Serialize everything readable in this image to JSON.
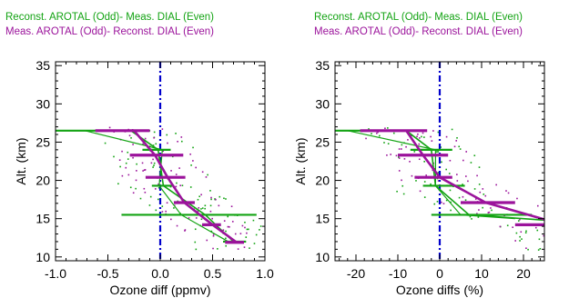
{
  "chart_data": [
    {
      "type": "line",
      "legend": [
        {
          "label": "Reconst. AROTAL (Odd)- Meas. DIAL (Even)",
          "color": "#13a313"
        },
        {
          "label": "Meas. AROTAL (Odd)- Reconst. DIAL (Even)",
          "color": "#9b139b"
        }
      ],
      "xlabel": "Ozone diff (ppmv)",
      "ylabel": "Alt. (km)",
      "xlim": [
        -1.0,
        1.0
      ],
      "ylim": [
        9.5,
        35.5
      ],
      "xticks": [
        -1.0,
        -0.5,
        0.0,
        0.5,
        1.0
      ],
      "xtick_labels": [
        "-1.0",
        "-0.5",
        "0.0",
        "0.5",
        "1.0"
      ],
      "yticks": [
        10,
        15,
        20,
        25,
        30,
        35
      ],
      "zero_line": {
        "x": 0,
        "color": "#0000cc",
        "style": "dash-dot"
      },
      "series": [
        {
          "color": "#13a313",
          "mean_profile": [
            {
              "x": -0.28,
              "y": 26.5
            },
            {
              "x": -0.02,
              "y": 24.0
            },
            {
              "x": 0.03,
              "y": 19.3
            },
            {
              "x": 0.43,
              "y": 15.5
            },
            {
              "x": 0.7,
              "y": 12.0
            }
          ],
          "median_profile": [
            {
              "x": -0.72,
              "y": 26.5
            },
            {
              "x": 0.02,
              "y": 24.0
            },
            {
              "x": -0.01,
              "y": 19.3
            },
            {
              "x": 0.2,
              "y": 15.5
            },
            {
              "x": 0.65,
              "y": 12.0
            }
          ],
          "error_bars": [
            {
              "y": 26.5,
              "x_low": -1.0,
              "x_high": -0.48
            },
            {
              "y": 24.0,
              "x_low": -0.17,
              "x_high": 0.1
            },
            {
              "y": 19.3,
              "x_low": -0.08,
              "x_high": 0.12
            },
            {
              "y": 15.5,
              "x_low": -0.37,
              "x_high": 0.92
            },
            {
              "y": 12.0,
              "x_low": 0.6,
              "x_high": 0.82
            }
          ]
        },
        {
          "color": "#9b139b",
          "mean_profile": [
            {
              "x": -0.25,
              "y": 26.5
            },
            {
              "x": -0.05,
              "y": 23.3
            },
            {
              "x": 0.07,
              "y": 20.4
            },
            {
              "x": 0.23,
              "y": 17.1
            },
            {
              "x": 0.5,
              "y": 14.2
            },
            {
              "x": 0.73,
              "y": 11.9
            }
          ],
          "median_profile": [],
          "error_bars": [
            {
              "y": 26.5,
              "x_low": -0.62,
              "x_high": -0.1
            },
            {
              "y": 23.3,
              "x_low": -0.29,
              "x_high": 0.22
            },
            {
              "y": 20.4,
              "x_low": -0.14,
              "x_high": 0.24
            },
            {
              "y": 17.1,
              "x_low": 0.13,
              "x_high": 0.33
            },
            {
              "y": 14.2,
              "x_low": 0.4,
              "x_high": 0.58
            },
            {
              "y": 11.9,
              "x_low": 0.62,
              "x_high": 0.8
            }
          ]
        }
      ]
    },
    {
      "type": "line",
      "legend": [
        {
          "label": "Reconst. AROTAL (Odd)- Meas. DIAL (Even)",
          "color": "#13a313"
        },
        {
          "label": "Meas. AROTAL (Odd)- Reconst. DIAL (Even)",
          "color": "#9b139b"
        }
      ],
      "xlabel": "Ozone diffs (%)",
      "ylabel": "Alt. (km)",
      "xlim": [
        -25,
        25
      ],
      "ylim": [
        9.5,
        35.5
      ],
      "xticks": [
        -20,
        -10,
        0,
        10,
        20
      ],
      "xtick_labels": [
        "-20",
        "-10",
        "0",
        "10",
        "20"
      ],
      "yticks": [
        10,
        15,
        20,
        25,
        30,
        35
      ],
      "zero_line": {
        "x": 0,
        "color": "#0000cc",
        "style": "dash-dot"
      },
      "series": [
        {
          "color": "#13a313",
          "mean_profile": [
            {
              "x": -8,
              "y": 26.5
            },
            {
              "x": -2,
              "y": 24.0
            },
            {
              "x": -1,
              "y": 19.3
            },
            {
              "x": 7,
              "y": 15.5
            },
            {
              "x": 25,
              "y": 14.8
            }
          ],
          "median_profile": [
            {
              "x": -22,
              "y": 26.5
            },
            {
              "x": -1,
              "y": 24.0
            },
            {
              "x": -1,
              "y": 19.3
            },
            {
              "x": 5,
              "y": 15.5
            },
            {
              "x": 18,
              "y": 15.0
            }
          ],
          "error_bars": [
            {
              "y": 26.5,
              "x_low": -25,
              "x_high": -9
            },
            {
              "y": 24.0,
              "x_low": -7,
              "x_high": 3
            },
            {
              "y": 19.3,
              "x_low": -4,
              "x_high": 6
            },
            {
              "y": 15.5,
              "x_low": -2,
              "x_high": 22
            }
          ],
          "note": ""
        },
        {
          "color": "#9b139b",
          "mean_profile": [
            {
              "x": -8,
              "y": 26.5
            },
            {
              "x": -4,
              "y": 23.3
            },
            {
              "x": 0,
              "y": 20.4
            },
            {
              "x": 11,
              "y": 17.1
            },
            {
              "x": 25,
              "y": 14.9
            }
          ],
          "median_profile": [],
          "error_bars": [
            {
              "y": 26.5,
              "x_low": -19,
              "x_high": -3
            },
            {
              "y": 23.3,
              "x_low": -10,
              "x_high": 2
            },
            {
              "y": 20.4,
              "x_low": -6,
              "x_high": 3
            },
            {
              "y": 17.1,
              "x_low": 5,
              "x_high": 18
            },
            {
              "y": 14.2,
              "x_low": 18,
              "x_high": 25
            }
          ]
        }
      ]
    }
  ]
}
